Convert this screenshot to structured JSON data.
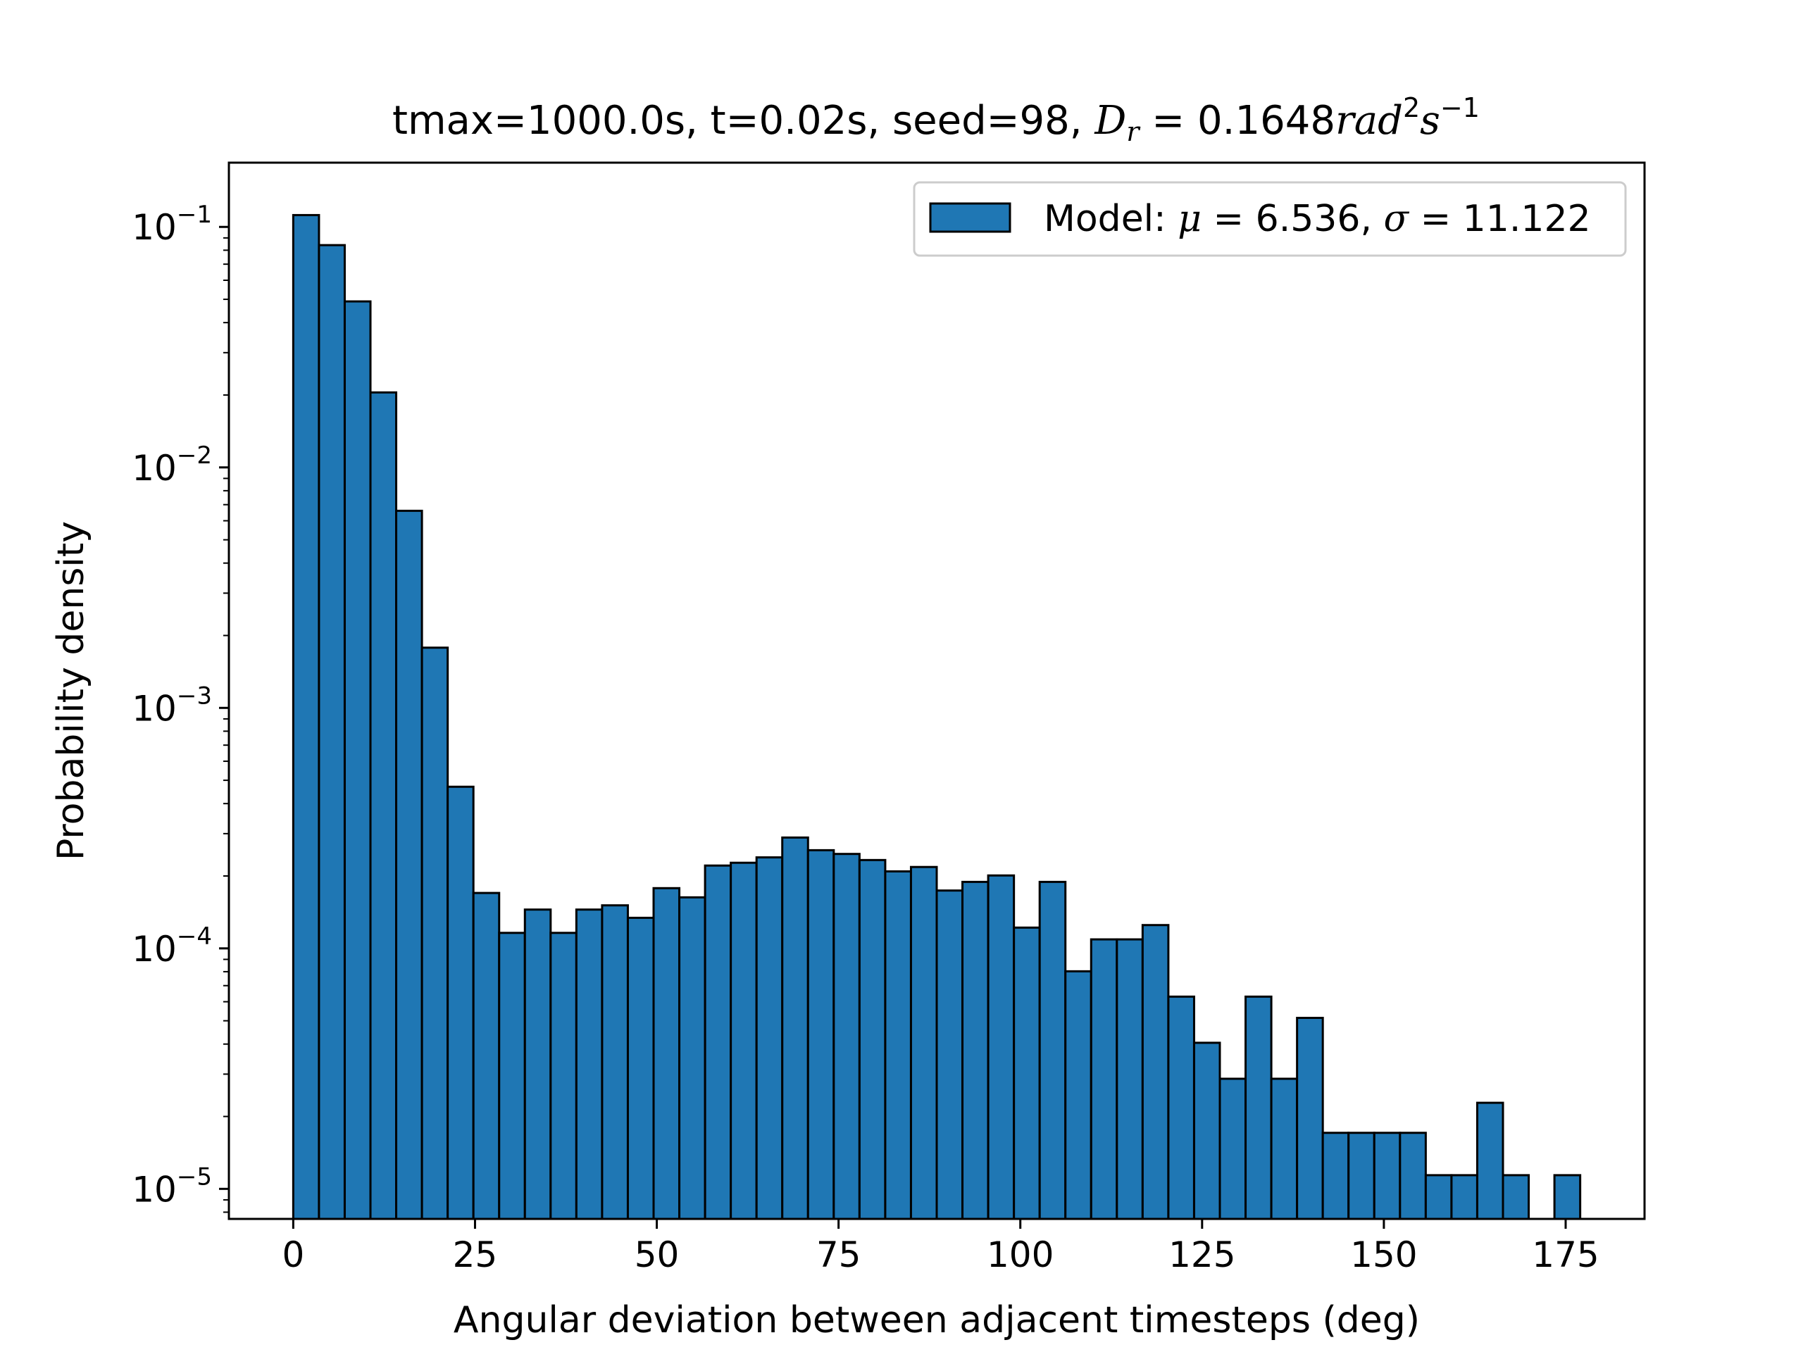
{
  "chart_data": {
    "type": "bar",
    "subtype": "histogram",
    "title": {
      "prefix": "tmax=1000.0s, t=0.02s, seed=98, ",
      "math_var": "D",
      "math_sub": "r",
      "math_eq": " = 0.1648",
      "math_unit": "rad",
      "math_unit_exp": "2",
      "math_unit2": "s",
      "math_unit2_exp": "−1"
    },
    "xlabel": "Angular deviation between adjacent timesteps (deg)",
    "ylabel": "Probability density",
    "xlim": [
      -8.85,
      185.85
    ],
    "ylim": [
      7.5e-06,
      0.185
    ],
    "yscale": "log",
    "grid": false,
    "legend": {
      "position": "top-right",
      "entries": [
        {
          "prefix": "Model: ",
          "mu_sym": "μ",
          "mu_val": " = 6.536, ",
          "sigma_sym": "σ",
          "sigma_val": " = 11.122"
        }
      ]
    },
    "x_ticks": [
      {
        "value": 0,
        "label": "0"
      },
      {
        "value": 25,
        "label": "25"
      },
      {
        "value": 50,
        "label": "50"
      },
      {
        "value": 75,
        "label": "75"
      },
      {
        "value": 100,
        "label": "100"
      },
      {
        "value": 125,
        "label": "125"
      },
      {
        "value": 150,
        "label": "150"
      },
      {
        "value": 175,
        "label": "175"
      }
    ],
    "y_ticks": [
      {
        "value": 0.1,
        "base": "10",
        "exp": "−1"
      },
      {
        "value": 0.01,
        "base": "10",
        "exp": "−2"
      },
      {
        "value": 0.001,
        "base": "10",
        "exp": "−3"
      },
      {
        "value": 0.0001,
        "base": "10",
        "exp": "−4"
      },
      {
        "value": 1e-05,
        "base": "10",
        "exp": "−5"
      }
    ],
    "series": [
      {
        "name": "Model",
        "color": "#1f77b4",
        "edgecolor": "#000000",
        "bin_start": 0,
        "bin_width": 3.54,
        "values": [
          0.112,
          0.084,
          0.049,
          0.0205,
          0.0066,
          0.00178,
          0.00047,
          0.00017,
          0.000116,
          0.000145,
          0.000116,
          0.000145,
          0.000151,
          0.000134,
          0.000178,
          0.000163,
          0.000221,
          0.000227,
          0.000239,
          0.000289,
          0.000256,
          0.000247,
          0.000233,
          0.000209,
          0.000218,
          0.000174,
          0.000189,
          0.000201,
          0.000122,
          0.000189,
          8.03e-05,
          0.000109,
          0.000109,
          0.000125,
          6.3e-05,
          4.05e-05,
          2.87e-05,
          6.3e-05,
          2.87e-05,
          5.14e-05,
          1.71e-05,
          1.71e-05,
          1.71e-05,
          1.71e-05,
          1.14e-05,
          1.14e-05,
          2.28e-05,
          1.14e-05,
          0,
          1.14e-05
        ]
      }
    ]
  }
}
